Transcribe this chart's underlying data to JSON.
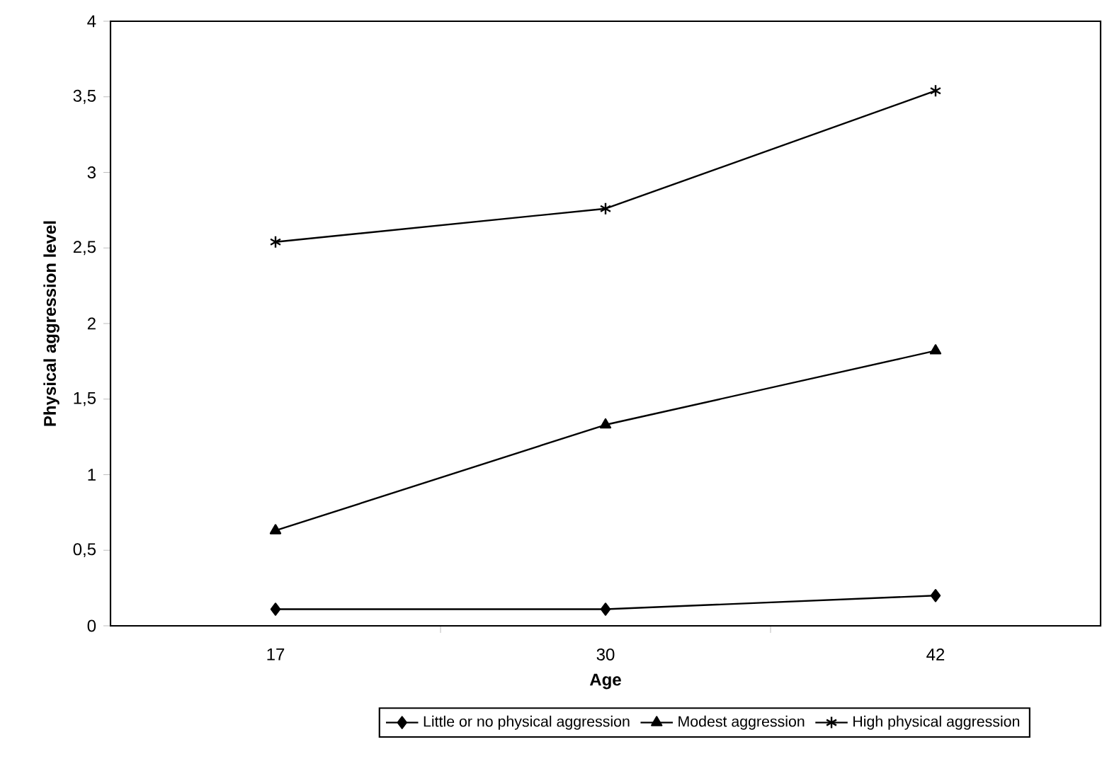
{
  "chart_data": {
    "type": "line",
    "xlabel": "Age",
    "ylabel": "Physical aggression level",
    "categories": [
      "17",
      "30",
      "42"
    ],
    "series": [
      {
        "name": "Little or no physical aggression",
        "color": "#000000",
        "marker": "diamond",
        "values": [
          0.11,
          0.11,
          0.2
        ]
      },
      {
        "name": "Modest aggression",
        "color": "#000000",
        "marker": "triangle",
        "values": [
          0.63,
          1.33,
          1.82
        ]
      },
      {
        "name": "High physical aggression",
        "color": "#000000",
        "marker": "cross",
        "values": [
          2.54,
          2.76,
          3.54
        ]
      }
    ],
    "ylim": [
      0,
      4
    ],
    "yticks": [
      0,
      {
        "value": 0.5,
        "label": "0,5"
      },
      1,
      {
        "value": 1.5,
        "label": "1,5"
      },
      2,
      {
        "value": 2.5,
        "label": "2,5"
      },
      3,
      {
        "value": 3.5,
        "label": "3,5"
      },
      4
    ],
    "grid": false,
    "legend": "bottom",
    "line_style": "solid"
  }
}
